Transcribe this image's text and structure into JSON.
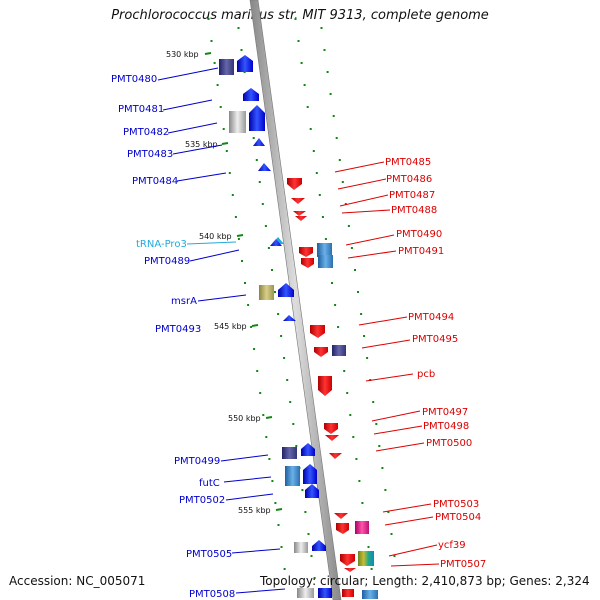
{
  "title": "Prochlorococcus marinus str. MIT 9313, complete genome",
  "accession": "Accession: NC_005071",
  "topology": "Topology: circular; Length: 2,410,873 bp; Genes: 2,324",
  "colors": {
    "forward": "#0000dd",
    "reverse": "#dd0000",
    "trna": "#22aadd",
    "backbone": "#999999",
    "tick": "#118811"
  },
  "ticks": [
    "530 kbp",
    "535 kbp",
    "540 kbp",
    "545 kbp",
    "550 kbp",
    "555 kbp"
  ],
  "forward_genes": [
    "PMT0480",
    "PMT0481",
    "PMT0482",
    "PMT0483",
    "PMT0484",
    "tRNA-Pro3",
    "PMT0489",
    "msrA",
    "PMT0493",
    "PMT0499",
    "futC",
    "PMT0502",
    "PMT0505",
    "PMT0508"
  ],
  "reverse_genes": [
    "PMT0485",
    "PMT0486",
    "PMT0487",
    "PMT0488",
    "PMT0490",
    "PMT0491",
    "PMT0494",
    "PMT0495",
    "pcb",
    "PMT0497",
    "PMT0498",
    "PMT0500",
    "PMT0503",
    "PMT0504",
    "ycf39",
    "PMT0507"
  ]
}
